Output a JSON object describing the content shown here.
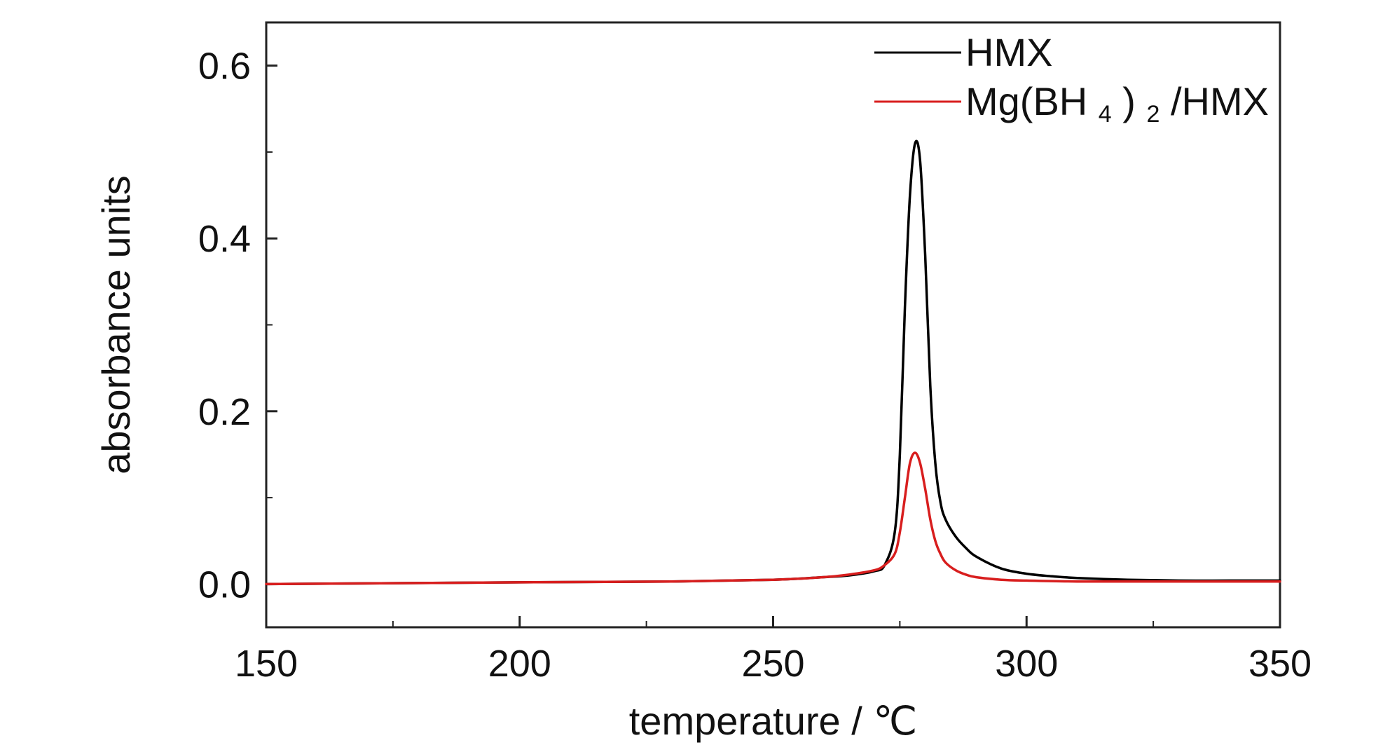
{
  "chart_data": {
    "type": "line",
    "title": "",
    "xlabel": "temperature / ℃",
    "ylabel": "absorbance units",
    "xlim": [
      150,
      350
    ],
    "ylim": [
      -0.05,
      0.65
    ],
    "xticks": [
      150,
      200,
      250,
      300,
      350
    ],
    "xtick_labels": [
      "150",
      "200",
      "250",
      "300",
      "350"
    ],
    "xminor_step": 25,
    "yticks": [
      0.0,
      0.2,
      0.4,
      0.6
    ],
    "ytick_labels": [
      "0.0",
      "0.2",
      "0.4",
      "0.6"
    ],
    "yminor_step": 0.1,
    "grid": false,
    "legend_position": "top-right",
    "series": [
      {
        "name": "HMX",
        "legend_main": "HMX",
        "color": "#000000",
        "x": [
          150,
          200,
          230,
          250,
          260,
          265,
          270,
          272,
          274,
          275,
          276,
          277,
          278,
          279,
          280,
          281,
          282,
          283,
          284,
          286,
          288,
          290,
          295,
          300,
          305,
          310,
          320,
          330,
          340,
          350
        ],
        "y": [
          0.0,
          0.002,
          0.003,
          0.005,
          0.008,
          0.01,
          0.015,
          0.022,
          0.06,
          0.15,
          0.32,
          0.45,
          0.51,
          0.49,
          0.38,
          0.23,
          0.14,
          0.095,
          0.075,
          0.055,
          0.042,
          0.032,
          0.018,
          0.012,
          0.009,
          0.007,
          0.005,
          0.004,
          0.004,
          0.004
        ]
      },
      {
        "name": "Mg(BH4)2/HMX",
        "legend_parts": [
          "Mg(BH",
          "4",
          ")",
          "2",
          "/HMX"
        ],
        "color": "#d81e1e",
        "x": [
          150,
          200,
          230,
          250,
          260,
          265,
          270,
          272,
          274,
          275,
          276,
          277,
          278,
          279,
          280,
          281,
          282,
          283,
          284,
          286,
          288,
          290,
          295,
          300,
          310,
          320,
          330,
          340,
          350
        ],
        "y": [
          0.0,
          0.002,
          0.003,
          0.005,
          0.008,
          0.011,
          0.016,
          0.022,
          0.035,
          0.06,
          0.1,
          0.14,
          0.152,
          0.14,
          0.11,
          0.075,
          0.05,
          0.035,
          0.025,
          0.016,
          0.011,
          0.008,
          0.005,
          0.004,
          0.003,
          0.003,
          0.003,
          0.003,
          0.003
        ]
      }
    ]
  }
}
